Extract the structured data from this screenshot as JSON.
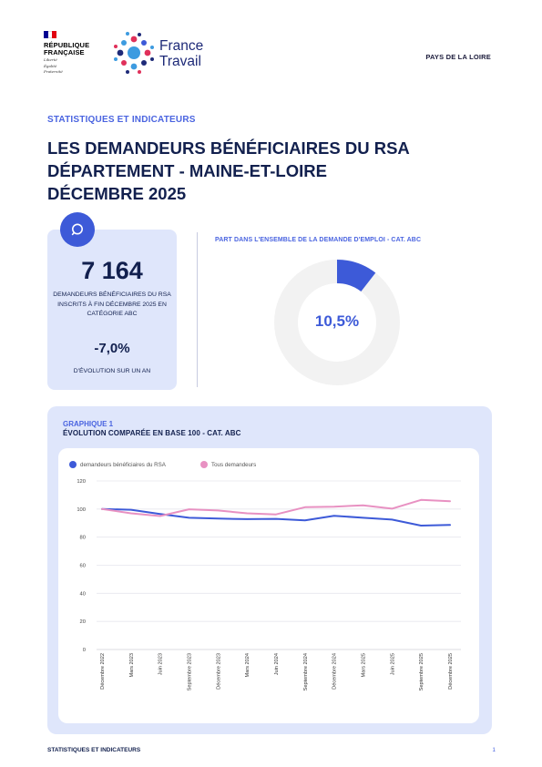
{
  "header": {
    "republique_line1": "RÉPUBLIQUE",
    "republique_line2": "FRANÇAISE",
    "motto_1": "Liberté",
    "motto_2": "Égalité",
    "motto_3": "Fraternité",
    "brand_line1": "France",
    "brand_line2": "Travail",
    "region": "PAYS DE LA LOIRE"
  },
  "kicker": "STATISTIQUES ET INDICATEURS",
  "title": {
    "line1": "LES DEMANDEURS BÉNÉFICIAIRES DU RSA",
    "line2": "DÉPARTEMENT - MAINE-ET-LOIRE",
    "line3": "DÉCEMBRE 2025"
  },
  "kpi": {
    "value": "7 164",
    "desc": "DEMANDEURS BÉNÉFICIAIRES DU RSA INSCRITS À FIN DÉCEMBRE 2025 EN CATÉGORIE ABC",
    "evolution": "-7,0%",
    "evolution_label": "D'ÉVOLUTION SUR UN AN"
  },
  "donut": {
    "label": "PART DANS L'ENSEMBLE DE LA DEMANDE D'EMPLOI - CAT. ABC",
    "value_text": "10,5%",
    "fraction": 0.105,
    "accent": "#3d5ad8",
    "track": "#f2f2f2"
  },
  "chart_section": {
    "kicker": "GRAPHIQUE 1",
    "title": "ÉVOLUTION COMPARÉE EN BASE 100 - CAT. ABC"
  },
  "chart_data": {
    "type": "line",
    "title": "",
    "ylim": [
      0,
      120
    ],
    "yticks": [
      0,
      20,
      40,
      60,
      80,
      100,
      120
    ],
    "grid": true,
    "legend": "top-left",
    "x": [
      "Décembre 2022",
      "Mars 2023",
      "Juin 2023",
      "Septembre 2023",
      "Décembre 2023",
      "Mars 2024",
      "Juin 2024",
      "Septembre 2024",
      "Décembre 2024",
      "Mars 2025",
      "Juin 2025",
      "Septembre 2025",
      "Décembre 2025"
    ],
    "series": [
      {
        "name": "demandeurs bénéficiaires du RSA",
        "color": "#3d5ad8",
        "values": [
          100,
          99.5,
          96.5,
          93.8,
          93.2,
          92.8,
          93.0,
          92.0,
          95.2,
          93.8,
          92.5,
          88.2,
          88.7
        ]
      },
      {
        "name": "Tous demandeurs",
        "color": "#e891c2",
        "values": [
          100,
          97.0,
          95.0,
          99.8,
          99.0,
          97.0,
          96.2,
          101.3,
          101.7,
          102.7,
          100.3,
          106.5,
          105.6
        ]
      }
    ]
  },
  "footer": {
    "label": "STATISTIQUES ET INDICATEURS",
    "page": "1"
  }
}
